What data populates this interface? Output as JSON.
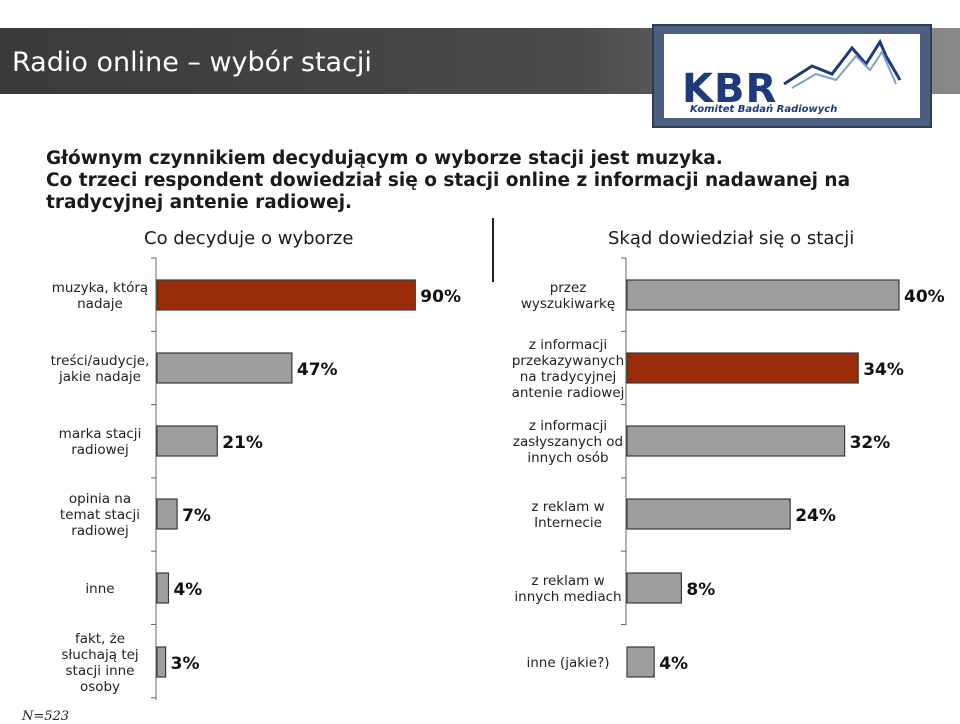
{
  "header": {
    "title": "Radio online – wybór stacji"
  },
  "logo": {
    "letters": "KBR",
    "subtitle": "Komitet Badań Radiowych"
  },
  "intro": {
    "line1": "Głównym czynnikiem decydującym o wyborze stacji jest muzyka.",
    "line2": "Co trzeci respondent dowiedział się o stacji online z informacji nadawanej na",
    "line3": "tradycyjnej antenie radiowej."
  },
  "colors": {
    "highlight": "#9b2c0a",
    "bar": "#9e9e9e",
    "bar_border": "#3a3a3a"
  },
  "chart_data": [
    {
      "type": "bar",
      "orientation": "horizontal",
      "title": "Co decyduje o wyborze",
      "categories": [
        [
          "muzyka, którą",
          "nadaje"
        ],
        [
          "treści/audycje,",
          "jakie nadaje"
        ],
        [
          "marka stacji",
          "radiowej"
        ],
        [
          "opinia na",
          "temat stacji",
          "radiowej"
        ],
        [
          "inne"
        ],
        [
          "fakt, że",
          "słuchają tej",
          "stacji inne",
          "osoby"
        ]
      ],
      "values": [
        90,
        47,
        21,
        7,
        4,
        3
      ],
      "value_labels": [
        "90%",
        "47%",
        "21%",
        "7%",
        "4%",
        "3%"
      ],
      "highlight_index": 0,
      "unit": "%"
    },
    {
      "type": "bar",
      "orientation": "horizontal",
      "title": "Skąd dowiedział się o stacji",
      "categories": [
        [
          "przez",
          "wyszukiwarkę"
        ],
        [
          "z informacji",
          "przekazywanych",
          "na tradycyjnej",
          "antenie radiowej"
        ],
        [
          "z informacji",
          "zasłyszanych od",
          "innych osób"
        ],
        [
          "z reklam w",
          "Internecie"
        ],
        [
          "z reklam w",
          "innych mediach"
        ],
        [
          "inne (jakie?)"
        ]
      ],
      "values": [
        40,
        34,
        32,
        24,
        8,
        4
      ],
      "value_labels": [
        "40%",
        "34%",
        "32%",
        "24%",
        "8%",
        "4%"
      ],
      "highlight_index": 1,
      "unit": "%"
    }
  ],
  "footnote": "N=523"
}
